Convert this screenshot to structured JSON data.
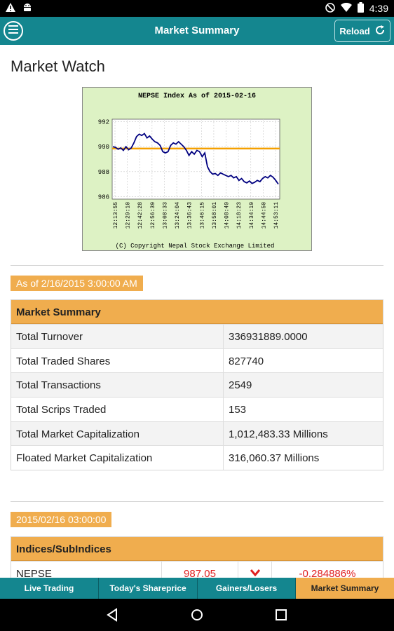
{
  "status_bar": {
    "time": "4:39",
    "left_icons": [
      "warning-icon",
      "android-icon"
    ],
    "right_icons": [
      "do-not-disturb-icon",
      "wifi-icon",
      "battery-icon"
    ]
  },
  "app_bar": {
    "title": "Market Summary",
    "reload_label": "Reload"
  },
  "page_title": "Market Watch",
  "chart_data": {
    "type": "line",
    "title": "NEPSE Index As of 2015-02-16",
    "footer": "(C) Copyright Nepal Stock Exchange Limited",
    "xlabel": "",
    "ylabel": "",
    "y_ticks": [
      992,
      990,
      988,
      986
    ],
    "ylim": [
      985.8,
      992.2
    ],
    "x_ticks": [
      "12:13:55",
      "12:29:10",
      "12:42:28",
      "12:56:39",
      "13:08:33",
      "13:24:04",
      "13:36:43",
      "13:46:15",
      "13:58:01",
      "14:08:49",
      "14:18:23",
      "14:34:19",
      "14:44:50",
      "14:53:11"
    ],
    "grid": true,
    "reference_line": 989.85,
    "colors": {
      "line": "#000080",
      "reference": "#f5a000",
      "background": "#ffffff",
      "panel": "#ddf2c4"
    },
    "series": [
      {
        "values": [
          990.0,
          989.95,
          989.8,
          989.9,
          989.7,
          990.0,
          989.75,
          989.9,
          990.3,
          990.8,
          991.0,
          990.9,
          991.05,
          990.7,
          990.85,
          990.6,
          990.4,
          990.3,
          990.1,
          989.6,
          989.5,
          989.6,
          990.1,
          990.3,
          990.2,
          990.4,
          990.2,
          990.0,
          989.7,
          989.3,
          989.6,
          989.4,
          989.7,
          989.6,
          989.2,
          989.5,
          988.4,
          988.0,
          987.8,
          987.85,
          987.7,
          987.9,
          987.8,
          987.7,
          987.6,
          987.7,
          987.5,
          987.6,
          987.3,
          987.45,
          987.2,
          987.1,
          987.25,
          987.05,
          987.15,
          987.3,
          987.2,
          987.45,
          987.6,
          987.5,
          987.7,
          987.55,
          987.3,
          987.0
        ]
      }
    ]
  },
  "as_of_1": "As of 2/16/2015 3:00:00 AM",
  "market_summary": {
    "header": "Market Summary",
    "rows": [
      {
        "label": "Total Turnover",
        "value": "336931889.0000"
      },
      {
        "label": "Total Traded Shares",
        "value": "827740"
      },
      {
        "label": "Total Transactions",
        "value": "2549"
      },
      {
        "label": "Total Scrips Traded",
        "value": "153"
      },
      {
        "label": "Total Market Capitalization",
        "value": "1,012,483.33 Millions"
      },
      {
        "label": "Floated Market Capitalization",
        "value": "316,060.37 Millions"
      }
    ]
  },
  "as_of_2": "2015/02/16 03:00:00",
  "indices": {
    "header": "Indices/SubIndices",
    "rows": [
      {
        "name": "NEPSE",
        "value": "987.05",
        "direction_icon": "chevron-down-icon",
        "change": "-0.284886%"
      }
    ]
  },
  "tabs": [
    {
      "label": "Live Trading",
      "active": false
    },
    {
      "label": "Today's Shareprice",
      "active": false
    },
    {
      "label": "Gainers/Losers",
      "active": false
    },
    {
      "label": "Market Summary",
      "active": true
    }
  ],
  "nav_bar": {
    "icons": [
      "back-icon",
      "home-icon",
      "recents-icon"
    ]
  }
}
